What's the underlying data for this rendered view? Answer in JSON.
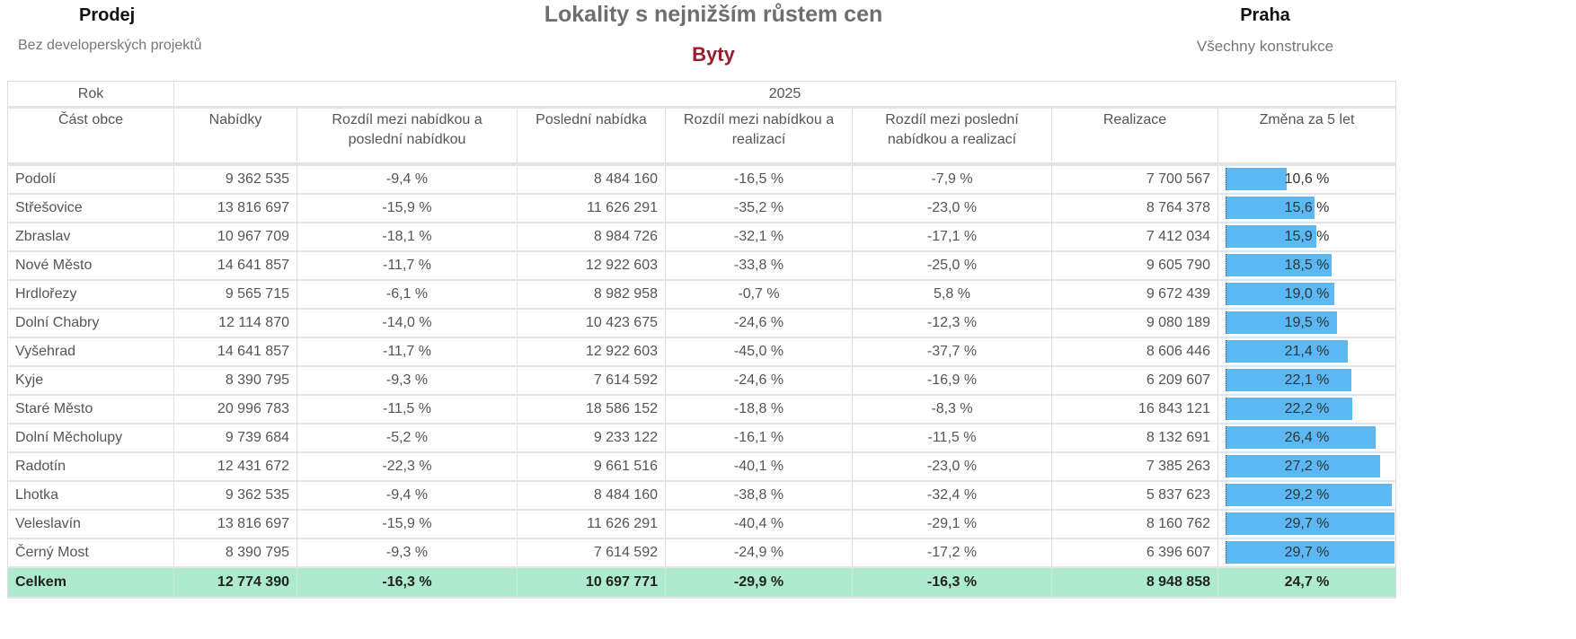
{
  "header": {
    "left_title": "Prodej",
    "left_subtitle": "Bez developerských projektů",
    "title": "Lokality s nejnižším růstem cen",
    "subtitle": "Byty",
    "right_title": "Praha",
    "right_subtitle": "Všechny konstrukce"
  },
  "colors": {
    "bar": "#5bb8f5",
    "total_bg": "#aeeacd",
    "subtitle": "#9b1c2c"
  },
  "chart_data": {
    "type": "table",
    "title": "Lokality s nejnižším růstem cen",
    "year_label": "Rok",
    "year": "2025",
    "columns": [
      "Část obce",
      "Nabídky",
      "Rozdíl mezi nabídkou a poslední nabídkou",
      "Poslední nabídka",
      "Rozdíl mezi nabídkou a realizací",
      "Rozdíl mezi poslední nabídkou a realizací",
      "Realizace",
      "Změna za 5 let"
    ],
    "rows": [
      [
        "Podolí",
        "9 362 535",
        "-9,4 %",
        "8 484 160",
        "-16,5 %",
        "-7,9 %",
        "7 700 567",
        "10,6 %"
      ],
      [
        "Střešovice",
        "13 816 697",
        "-15,9 %",
        "11 626 291",
        "-35,2 %",
        "-23,0 %",
        "8 764 378",
        "15,6 %"
      ],
      [
        "Zbraslav",
        "10 967 709",
        "-18,1 %",
        "8 984 726",
        "-32,1 %",
        "-17,1 %",
        "7 412 034",
        "15,9 %"
      ],
      [
        "Nové Město",
        "14 641 857",
        "-11,7 %",
        "12 922 603",
        "-33,8 %",
        "-25,0 %",
        "9 605 790",
        "18,5 %"
      ],
      [
        "Hrdlořezy",
        "9 565 715",
        "-6,1 %",
        "8 982 958",
        "-0,7 %",
        "5,8 %",
        "9 672 439",
        "19,0 %"
      ],
      [
        "Dolní Chabry",
        "12 114 870",
        "-14,0 %",
        "10 423 675",
        "-24,6 %",
        "-12,3 %",
        "9 080 189",
        "19,5 %"
      ],
      [
        "Vyšehrad",
        "14 641 857",
        "-11,7 %",
        "12 922 603",
        "-45,0 %",
        "-37,7 %",
        "8 606 446",
        "21,4 %"
      ],
      [
        "Kyje",
        "8 390 795",
        "-9,3 %",
        "7 614 592",
        "-24,6 %",
        "-16,9 %",
        "6 209 607",
        "22,1 %"
      ],
      [
        "Staré Město",
        "20 996 783",
        "-11,5 %",
        "18 586 152",
        "-18,8 %",
        "-8,3 %",
        "16 843 121",
        "22,2 %"
      ],
      [
        "Dolní Měcholupy",
        "9 739 684",
        "-5,2 %",
        "9 233 122",
        "-16,1 %",
        "-11,5 %",
        "8 132 691",
        "26,4 %"
      ],
      [
        "Radotín",
        "12 431 672",
        "-22,3 %",
        "9 661 516",
        "-40,1 %",
        "-23,0 %",
        "7 385 263",
        "27,2 %"
      ],
      [
        "Lhotka",
        "9 362 535",
        "-9,4 %",
        "8 484 160",
        "-38,8 %",
        "-32,4 %",
        "5 837 623",
        "29,2 %"
      ],
      [
        "Veleslavín",
        "13 816 697",
        "-15,9 %",
        "11 626 291",
        "-40,4 %",
        "-29,1 %",
        "8 160 762",
        "29,7 %"
      ],
      [
        "Černý Most",
        "8 390 795",
        "-9,3 %",
        "7 614 592",
        "-24,9 %",
        "-17,2 %",
        "6 396 607",
        "29,7 %"
      ]
    ],
    "change_values": [
      10.6,
      15.6,
      15.9,
      18.5,
      19.0,
      19.5,
      21.4,
      22.1,
      22.2,
      26.4,
      27.2,
      29.2,
      29.7,
      29.7
    ],
    "total": [
      "Celkem",
      "12 774 390",
      "-16,3 %",
      "10 697 771",
      "-29,9 %",
      "-16,3 %",
      "8 948 858",
      "24,7 %"
    ]
  }
}
